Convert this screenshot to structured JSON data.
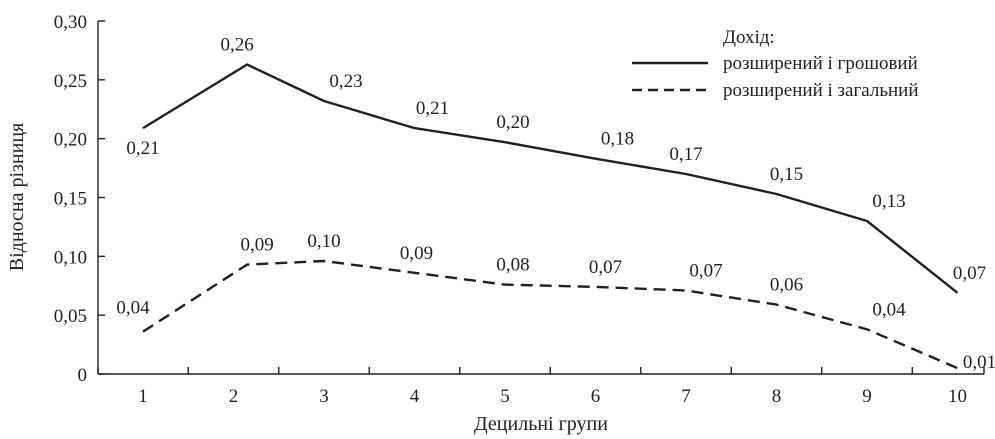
{
  "chart_data": {
    "type": "line",
    "title": "",
    "xlabel": "Децильні групи",
    "ylabel": "Відносна різниця",
    "ylim": [
      0,
      0.3
    ],
    "grid": false,
    "legend_position": "top-right",
    "legend_title": "Дохід:",
    "categories": [
      "1",
      "2",
      "3",
      "4",
      "5",
      "6",
      "7",
      "8",
      "9",
      "10"
    ],
    "y_ticks": [
      "0",
      "0,05",
      "0,10",
      "0,15",
      "0,20",
      "0,25",
      "0,30"
    ],
    "series": [
      {
        "name": "розширений і грошовий",
        "style": "solid",
        "x": [
          1,
          2.15,
          3,
          4,
          5,
          6,
          7,
          8,
          9,
          10
        ],
        "values": [
          0.209,
          0.263,
          0.232,
          0.209,
          0.197,
          0.183,
          0.17,
          0.153,
          0.13,
          0.069
        ],
        "labels": [
          "0,21",
          "0,26",
          "0,23",
          "0,21",
          "0,20",
          "0,18",
          "0,17",
          "0,15",
          "0,13",
          "0,07"
        ]
      },
      {
        "name": "розширений і загальний",
        "style": "dashed",
        "x": [
          1,
          2.15,
          3,
          4,
          5,
          6,
          7,
          8,
          9,
          10
        ],
        "values": [
          0.036,
          0.093,
          0.096,
          0.086,
          0.076,
          0.074,
          0.071,
          0.059,
          0.038,
          0.005
        ],
        "labels": [
          "0,04",
          "0,09",
          "0,10",
          "0,09",
          "0,08",
          "0,07",
          "0,07",
          "0,06",
          "0,04",
          "0,01"
        ]
      }
    ]
  }
}
